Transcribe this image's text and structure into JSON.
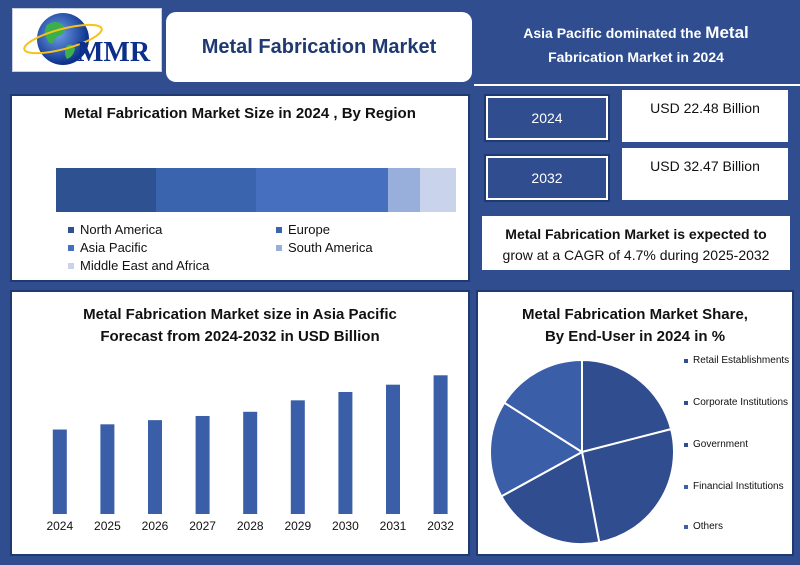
{
  "header": {
    "logo_text": "MMR",
    "title": "Metal Fabrication Market",
    "headline_line1_prefix": "Asia Pacific dominated the ",
    "headline_line1_emph": "Metal",
    "headline_line2": "Fabrication Market in 2024"
  },
  "colors": {
    "background": "#2f4d8f",
    "bar": "#3a5ea8",
    "border": "#1f3a70"
  },
  "region_chart": {
    "title": "Metal Fabrication Market Size in 2024 , By Region",
    "chart_data": {
      "type": "bar",
      "orientation": "horizontal-stacked",
      "title": "Metal Fabrication Market Size in 2024 , By Region",
      "series": [
        {
          "name": "North America",
          "value": 25,
          "color": "#2e5291"
        },
        {
          "name": "Europe",
          "value": 25,
          "color": "#3a64ad"
        },
        {
          "name": "Asia Pacific",
          "value": 33,
          "color": "#476fbf"
        },
        {
          "name": "South America",
          "value": 8,
          "color": "#98aedb"
        },
        {
          "name": "Middle East and Africa",
          "value": 9,
          "color": "#c9d3ec"
        }
      ],
      "legend": "bottom"
    }
  },
  "stats": {
    "year1": "2024",
    "value1": "USD 22.48 Billion",
    "year2": "2032",
    "value2": "USD 32.47 Billion",
    "cagr_line1": "Metal Fabrication Market is expected to",
    "cagr_line2": "grow at a CAGR of 4.7% during 2025-2032"
  },
  "forecast_chart": {
    "title_line1": "Metal Fabrication Market size in Asia Pacific",
    "title_line2": "Forecast from 2024-2032 in USD Billion",
    "chart_data": {
      "type": "bar",
      "title": "Metal Fabrication Market size in Asia Pacific Forecast from 2024-2032 in USD Billion",
      "categories": [
        "2024",
        "2025",
        "2026",
        "2027",
        "2028",
        "2029",
        "2030",
        "2031",
        "2032"
      ],
      "values": [
        8.1,
        8.6,
        9.0,
        9.4,
        9.8,
        10.9,
        11.7,
        12.4,
        13.3
      ],
      "ylim": [
        0,
        14
      ],
      "grid": false
    }
  },
  "pie_chart": {
    "title_line1": "Metal Fabrication Market Share,",
    "title_line2": "By End-User in 2024 in %",
    "chart_data": {
      "type": "pie",
      "title": "Metal Fabrication Market Share, By End-User in 2024 in %",
      "slices": [
        {
          "label": "Retail Establishments",
          "value": 21,
          "color": "#2f4d8f"
        },
        {
          "label": "Corporate Institutions",
          "value": 26,
          "color": "#2f4d8f"
        },
        {
          "label": "Government",
          "value": 20,
          "color": "#2f4d8f"
        },
        {
          "label": "Financial Institutions",
          "value": 17,
          "color": "#3a5ea8"
        },
        {
          "label": "Others",
          "value": 16,
          "color": "#3a5ea8"
        }
      ],
      "legend": "right"
    }
  }
}
